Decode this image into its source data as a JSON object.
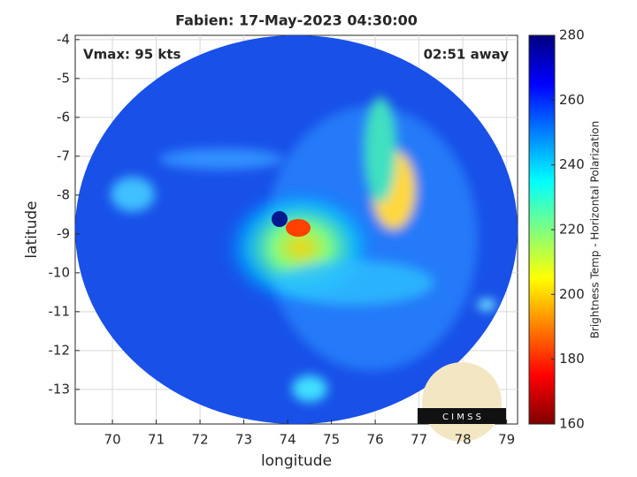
{
  "chart_data": {
    "type": "image-map",
    "title": "Fabien: 17-May-2023 04:30:00",
    "annotations": [
      "Vmax: 95 kts",
      "02:51 away"
    ],
    "xlabel": "longitude",
    "ylabel": "latitude",
    "xlim": [
      69.15,
      79.25
    ],
    "ylim": [
      -13.89,
      -3.89
    ],
    "xticks": [
      70,
      71,
      72,
      73,
      74,
      75,
      76,
      77,
      78,
      79
    ],
    "yticks": [
      -4,
      -5,
      -6,
      -7,
      -8,
      -9,
      -10,
      -11,
      -12,
      -13
    ],
    "grid": true,
    "colorbar": {
      "label": "Brightness Temp - Horizontal Polarization",
      "clim": [
        160,
        280
      ],
      "ticks": [
        160,
        180,
        200,
        220,
        240,
        260,
        280
      ],
      "colormap": [
        "#7f0000",
        "#ff0000",
        "#ff7f00",
        "#ffff00",
        "#7fff7f",
        "#00ffff",
        "#007fff",
        "#0000ff",
        "#00007f"
      ]
    },
    "logo": "C I M S S"
  }
}
